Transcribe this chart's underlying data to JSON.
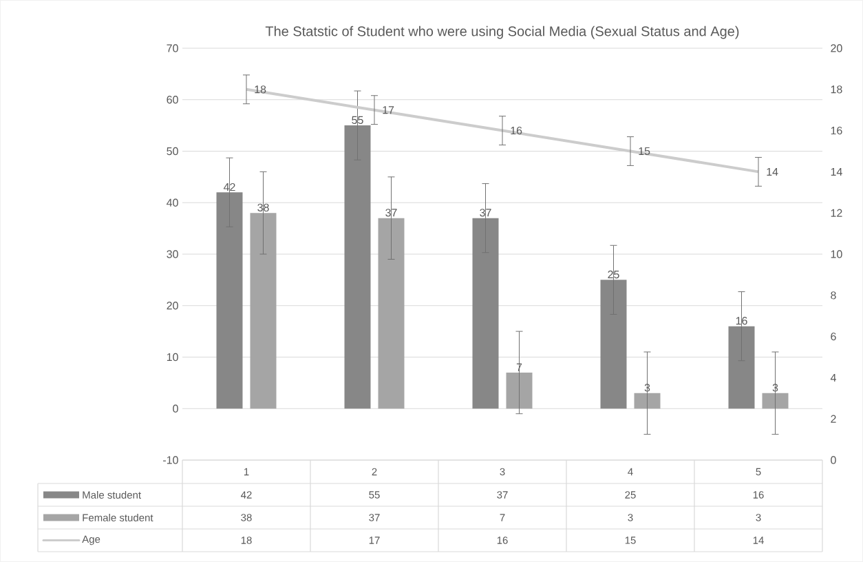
{
  "chart_data": {
    "type": "bar",
    "title": "The Statstic of Student who were using Social Media (Sexual Status and Age)",
    "categories": [
      "1",
      "2",
      "3",
      "4",
      "5"
    ],
    "series": [
      {
        "name": "Male student",
        "color": "#878787",
        "values": [
          42,
          55,
          37,
          25,
          16
        ],
        "value_labels": [
          "42",
          "55",
          "37",
          "25",
          "16"
        ],
        "errors": [
          6.7,
          6.7,
          6.7,
          6.7,
          6.7
        ]
      },
      {
        "name": "Female student",
        "color": "#a5a5a5",
        "values": [
          38,
          37,
          7,
          3,
          3
        ],
        "value_labels": [
          "38",
          "37",
          "7",
          "3",
          "3"
        ],
        "errors": [
          8,
          8,
          8,
          8,
          8
        ]
      },
      {
        "name": "Age",
        "type": "line",
        "axis": "y2",
        "color": "#cccccc",
        "values": [
          18,
          17,
          16,
          15,
          14
        ],
        "value_labels": [
          "18",
          "17",
          "16",
          "15",
          "14"
        ],
        "errors": [
          0.7,
          0.7,
          0.7,
          0.7,
          0.7
        ]
      }
    ],
    "ylim": [
      -10,
      70
    ],
    "yticks": [
      -10,
      0,
      10,
      20,
      30,
      40,
      50,
      60,
      70
    ],
    "y2lim": [
      0,
      20
    ],
    "y2ticks": [
      0,
      2,
      4,
      6,
      8,
      10,
      12,
      14,
      16,
      18,
      20
    ],
    "grid": "y",
    "legend": "bottom",
    "marker": "none",
    "line_style": "solid"
  }
}
